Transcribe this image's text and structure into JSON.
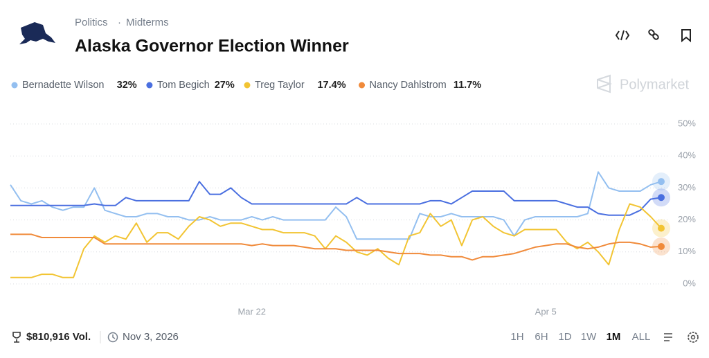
{
  "header": {
    "category": "Politics",
    "subcategory": "Midterms",
    "title": "Alaska Governor Election Winner"
  },
  "brand": "Polymarket",
  "footer": {
    "volume": "$810,916 Vol.",
    "end_date": "Nov 3, 2026",
    "ranges": [
      "1H",
      "6H",
      "1D",
      "1W",
      "1M",
      "ALL"
    ],
    "active_range": "1M"
  },
  "chart_data": {
    "type": "line",
    "categories": [
      null,
      null,
      null,
      null,
      null,
      null,
      null,
      null,
      null,
      null,
      null,
      null,
      null,
      null,
      null,
      null,
      null,
      null,
      null,
      null,
      null,
      null,
      null,
      "Mar 22",
      null,
      null,
      null,
      null,
      null,
      null,
      null,
      null,
      null,
      null,
      null,
      null,
      null,
      null,
      null,
      null,
      null,
      null,
      null,
      null,
      null,
      null,
      null,
      null,
      null,
      null,
      null,
      "Apr 5",
      null,
      null,
      null,
      null,
      null,
      null,
      null,
      null,
      null,
      null,
      null
    ],
    "ylim": [
      0,
      50
    ],
    "yticks": [
      {
        "value": 0,
        "label": "0%"
      },
      {
        "value": 10,
        "label": "10%"
      },
      {
        "value": 20,
        "label": "20%"
      },
      {
        "value": 30,
        "label": "30%"
      },
      {
        "value": 40,
        "label": "40%"
      },
      {
        "value": 50,
        "label": "50%"
      }
    ],
    "grid": true,
    "series": [
      {
        "name": "Bernadette Wilson",
        "color": "#93bff0",
        "current": {
          "value": 32,
          "label": "32%"
        },
        "values": [
          31,
          26,
          25,
          26,
          24,
          23,
          24,
          24,
          30,
          23,
          22,
          21,
          21,
          22,
          22,
          21,
          21,
          20,
          20,
          21,
          20,
          20,
          20,
          21,
          20,
          21,
          20,
          20,
          20,
          20,
          20,
          24,
          21,
          14,
          14,
          14,
          14,
          14,
          14,
          22,
          21,
          21,
          22,
          21,
          21,
          21,
          21,
          20,
          15,
          20,
          21,
          21,
          21,
          21,
          21,
          22,
          35,
          30,
          29,
          29,
          29,
          31,
          32
        ]
      },
      {
        "name": "Tom Begich",
        "color": "#4a6fe0",
        "current": {
          "value": 27,
          "label": "27%"
        },
        "values": [
          24.5,
          24.5,
          24.5,
          24.5,
          24.5,
          24.5,
          24.5,
          24.5,
          25,
          24.5,
          24.5,
          27,
          26,
          26,
          26,
          26,
          26,
          26,
          32,
          28,
          28,
          30,
          27,
          25,
          25,
          25,
          25,
          25,
          25,
          25,
          25,
          25,
          25,
          27,
          25,
          25,
          25,
          25,
          25,
          25,
          26,
          26,
          25,
          27,
          29,
          29,
          29,
          29,
          26,
          26,
          26,
          26,
          26,
          25,
          24,
          24,
          22,
          21.5,
          21.5,
          21.5,
          23,
          26.5,
          27
        ]
      },
      {
        "name": "Treg Taylor",
        "color": "#f2c432",
        "current": {
          "value": 17.4,
          "label": "17.4%"
        },
        "values": [
          2,
          2,
          2,
          3,
          3,
          2,
          2,
          11,
          15,
          13,
          15,
          14,
          19,
          13,
          16,
          16,
          14,
          18,
          21,
          20,
          18,
          19,
          19,
          18,
          17,
          17,
          16,
          16,
          16,
          15,
          11,
          15,
          13,
          10,
          9,
          11,
          8,
          6,
          15,
          16,
          22,
          18,
          20,
          12,
          20,
          21,
          18,
          16,
          15,
          17,
          17,
          17,
          17,
          13,
          11,
          13,
          10,
          6,
          17,
          25,
          24,
          21,
          17.4
        ]
      },
      {
        "name": "Nancy Dahlstrom",
        "color": "#f08a3a",
        "current": {
          "value": 11.7,
          "label": "11.7%"
        },
        "values": [
          15.5,
          15.5,
          15.5,
          14.5,
          14.5,
          14.5,
          14.5,
          14.5,
          14.5,
          12.5,
          12.5,
          12.5,
          12.5,
          12.5,
          12.5,
          12.5,
          12.5,
          12.5,
          12.5,
          12.5,
          12.5,
          12.5,
          12.5,
          12,
          12.5,
          12,
          12,
          12,
          11.5,
          11,
          11,
          11,
          10.5,
          10.5,
          10.5,
          10.5,
          10,
          9.5,
          9.5,
          9.5,
          9,
          9,
          8.5,
          8.5,
          7.5,
          8.5,
          8.5,
          9,
          9.5,
          10.5,
          11.5,
          12,
          12.5,
          12.5,
          11.5,
          11,
          11.5,
          12.5,
          13,
          13,
          12.5,
          11.5,
          11.7
        ]
      }
    ]
  }
}
